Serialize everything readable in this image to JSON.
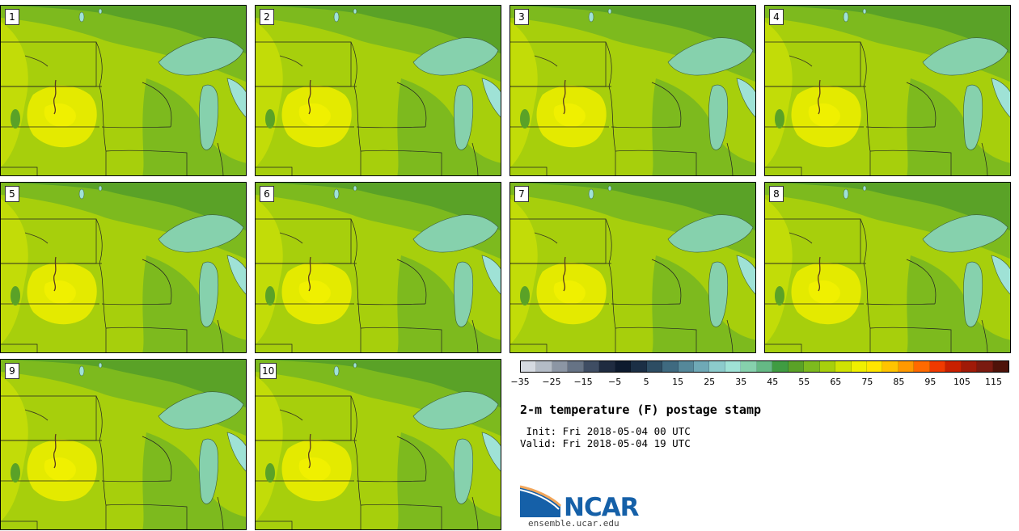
{
  "panels": [
    "1",
    "2",
    "3",
    "4",
    "5",
    "6",
    "7",
    "8",
    "9",
    "10"
  ],
  "colorbar": {
    "colors": [
      "#d5dae1",
      "#b4bcc6",
      "#8c96a4",
      "#667385",
      "#3f4d63",
      "#1f2b40",
      "#0d1a2e",
      "#1b2f45",
      "#2d4d63",
      "#3f6a80",
      "#55889a",
      "#6fa9b6",
      "#8ccbcc",
      "#9fe2d6",
      "#86d1ad",
      "#65b985",
      "#3f9c42",
      "#5aa227",
      "#7dba1e",
      "#a7cf0c",
      "#d0e303",
      "#f0f000",
      "#ffe600",
      "#ffc400",
      "#ff9900",
      "#ff6a00",
      "#f03a00",
      "#c82000",
      "#a01a08",
      "#7a1a10",
      "#4e1209"
    ],
    "ticks": [
      "−35",
      "−25",
      "−15",
      "−5",
      "5",
      "15",
      "25",
      "35",
      "45",
      "55",
      "65",
      "75",
      "85",
      "95",
      "105",
      "115"
    ],
    "tick_values": [
      -35,
      -25,
      -15,
      -5,
      5,
      15,
      25,
      35,
      45,
      55,
      65,
      75,
      85,
      95,
      105,
      115
    ],
    "min": -35,
    "max": 120
  },
  "title": "2-m temperature (F) postage stamp",
  "init": " Init: Fri 2018-05-04 00 UTC",
  "valid": "Valid: Fri 2018-05-04 19 UTC",
  "logo": {
    "text": "NCAR",
    "url": "ensemble.ucar.edu",
    "color": "#1560a8"
  },
  "map_colors": {
    "warm": "#e4ea00",
    "mild": "#c2dc08",
    "base": "#a7cf0c",
    "cool": "#7dba1e",
    "cold": "#5aa227",
    "lake": "#86d1ad",
    "lake_ice": "#9fe2d6",
    "hot": "#f0f000"
  }
}
